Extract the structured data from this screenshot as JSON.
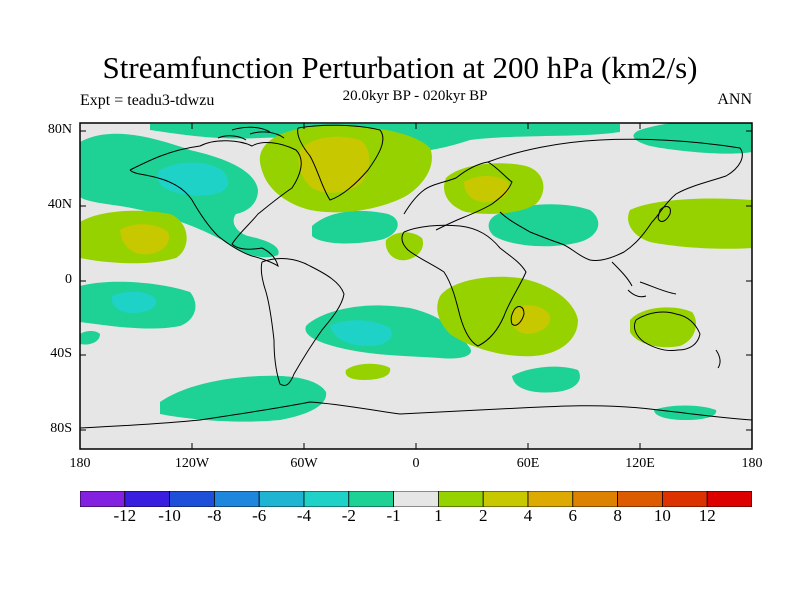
{
  "header": {
    "title": "Streamfunction Perturbation at 200 hPa (km2/s)",
    "expt": "Expt = teadu3-tdwzu",
    "subtitle": "20.0kyr BP - 020kyr BP",
    "season": "ANN"
  },
  "axes": {
    "lat_labels": [
      "80N",
      "40N",
      "0",
      "40S",
      "80S"
    ],
    "lon_labels": [
      "180",
      "120W",
      "60W",
      "0",
      "60E",
      "120E",
      "180"
    ]
  },
  "legend": {
    "labels": [
      "-12",
      "-10",
      "-8",
      "-6",
      "-4",
      "-2",
      "-1",
      "1",
      "2",
      "4",
      "6",
      "8",
      "10",
      "12"
    ],
    "colors": [
      "#8420e0",
      "#3a1ee0",
      "#1e4fd8",
      "#1e86dc",
      "#1eb4d2",
      "#1ed2c8",
      "#1ed296",
      "#e6e6e6",
      "#96d200",
      "#c8c800",
      "#dcaa00",
      "#dc8200",
      "#dc5a00",
      "#dc3200",
      "#dc0000"
    ]
  },
  "colors": {
    "neutral": "#e6e6e6",
    "neg1": "#1ed296",
    "neg2": "#1ed2c8",
    "pos1": "#96d200",
    "pos2": "#c8c800",
    "coast": "#000000"
  }
}
